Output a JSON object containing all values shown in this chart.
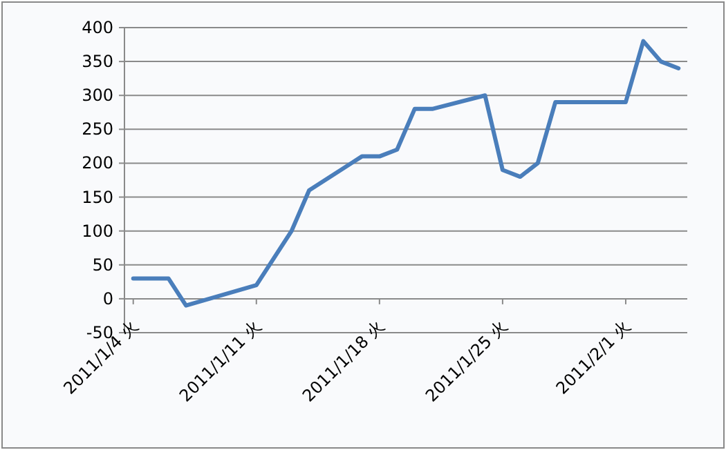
{
  "chart_data": {
    "type": "line",
    "x": [
      "2011-01-04",
      "2011-01-05",
      "2011-01-06",
      "2011-01-07",
      "2011-01-11",
      "2011-01-12",
      "2011-01-13",
      "2011-01-14",
      "2011-01-17",
      "2011-01-18",
      "2011-01-19",
      "2011-01-20",
      "2011-01-21",
      "2011-01-24",
      "2011-01-25",
      "2011-01-26",
      "2011-01-27",
      "2011-01-28",
      "2011-01-31",
      "2011-02-01",
      "2011-02-02",
      "2011-02-03",
      "2011-02-04"
    ],
    "series": [
      {
        "color": "#4a7ebb",
        "values": [
          30,
          30,
          30,
          -10,
          20,
          60,
          100,
          160,
          210,
          210,
          220,
          280,
          280,
          300,
          190,
          180,
          200,
          290,
          290,
          290,
          380,
          350,
          340
        ]
      }
    ],
    "xlim": [
      "2011-01-03T12:00",
      "2011-02-04T12:00"
    ],
    "xticks": [
      {
        "value": "2011-01-04",
        "label": "2011/1/4 火"
      },
      {
        "value": "2011-01-11",
        "label": "2011/1/11 火"
      },
      {
        "value": "2011-01-18",
        "label": "2011/1/18 火"
      },
      {
        "value": "2011-01-25",
        "label": "2011/1/25 火"
      },
      {
        "value": "2011-02-01",
        "label": "2011/2/1 火"
      }
    ],
    "ylim": [
      -50,
      400
    ],
    "yticks": [
      -50,
      0,
      50,
      100,
      150,
      200,
      250,
      300,
      350,
      400
    ],
    "grid": "y"
  }
}
